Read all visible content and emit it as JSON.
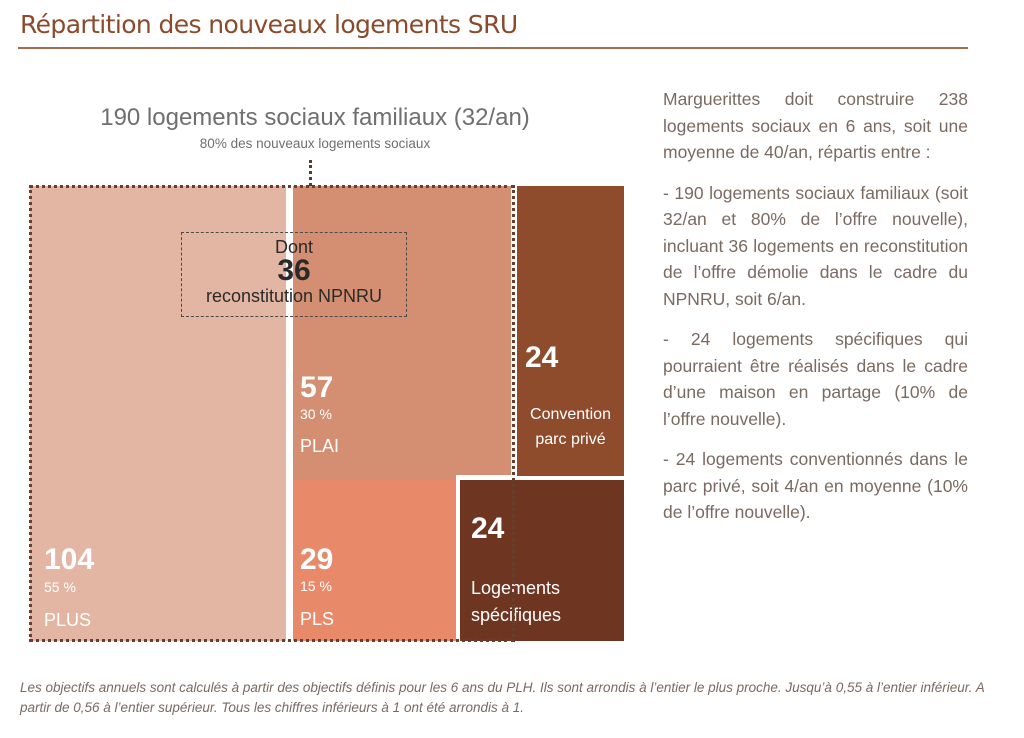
{
  "page": {
    "title": "Répartition des nouveaux logements SRU"
  },
  "chart": {
    "heading": "190 logements sociaux familiaux (32/an)",
    "subheading": "80% des nouveaux logements sociaux",
    "npnru": {
      "prefix": "Dont",
      "value": "36",
      "label": "reconstitution NPNRU"
    },
    "blocks": {
      "plus": {
        "value": "104",
        "percent": "55 %",
        "label": "PLUS",
        "color": "#e3b5a3"
      },
      "plai": {
        "value": "57",
        "percent": "30 %",
        "label": "PLAI",
        "color": "#d48e72"
      },
      "pls": {
        "value": "29",
        "percent": "15 %",
        "label": "PLS",
        "color": "#e8896a"
      },
      "convention": {
        "value": "24",
        "label_line1": "Convention",
        "label_line2": "parc privé",
        "color": "#8f4c2c"
      },
      "specifiques": {
        "value": "24",
        "label_line1": "Logements",
        "label_line2": "spécifiques",
        "color": "#6e3520"
      }
    }
  },
  "chart_data": {
    "type": "treemap",
    "total": 238,
    "groups": [
      {
        "name": "190 logements sociaux familiaux (32/an)",
        "value": 190,
        "items": [
          {
            "name": "PLUS",
            "value": 104,
            "share": "55 %"
          },
          {
            "name": "PLAI",
            "value": 57,
            "share": "30 %"
          },
          {
            "name": "PLS",
            "value": 29,
            "share": "15 %"
          }
        ],
        "annotation": "Dont 36 reconstitution NPNRU"
      },
      {
        "name": "Convention parc privé",
        "value": 24
      },
      {
        "name": "Logements spécifiques",
        "value": 24
      }
    ]
  },
  "side": {
    "paragraphs": [
      "Marguerittes doit construire 238 logements sociaux en 6 ans, soit une moyenne de 40/an, répartis entre :",
      "- 190 logements sociaux familiaux (soit 32/an et 80% de l’offre nouvelle), incluant 36 logements en reconstitution de l’offre démolie dans le cadre du NPNRU, soit 6/an.",
      "- 24 logements spécifiques qui pourraient être réalisés dans le cadre d’une maison en partage (10% de l’offre nouvelle).",
      "- 24 logements conventionnés dans le parc privé, soit 4/an en moyenne (10% de l’offre nouvelle)."
    ]
  },
  "footnote": {
    "text": "Les objectifs annuels sont calculés à partir des objectifs définis pour les 6 ans du PLH. Ils sont arrondis à l’entier le plus proche. Jusqu’à 0,55 à l’entier inférieur. A partir de 0,56 à l’entier supérieur. Tous les chiffres inférieurs à 1 ont été arrondis à 1."
  }
}
